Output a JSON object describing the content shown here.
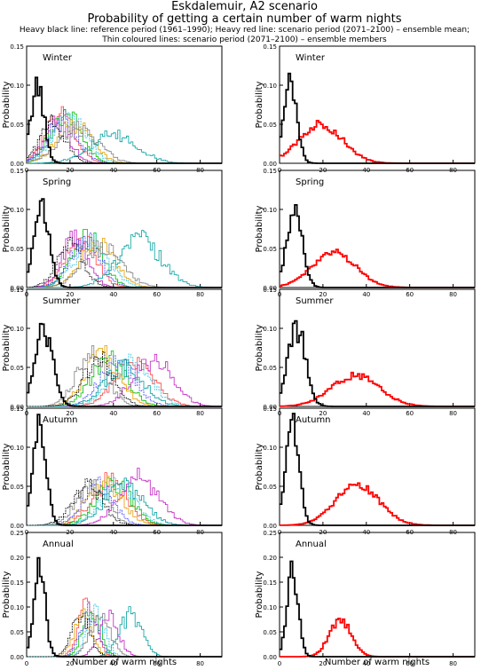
{
  "title": "Eskdalemuir, A2 scenario",
  "subtitle": "Probability of getting a certain number of warm nights",
  "legend_line1": "Heavy black line: reference period (1961–1990); Heavy red line: scenario period (2071–2100) – ensemble mean;",
  "legend_line2": "Thin coloured lines: scenario period (2071–2100) – ensemble members",
  "xlabel": "Number of warm nights",
  "ylabel": "Probability",
  "colors": {
    "reference": "#000000",
    "scenario_mean": "#ff0000",
    "members": [
      "#ff4040",
      "#00c000",
      "#20c0e0",
      "#c020c0",
      "#e0a000",
      "#4040ff",
      "#808080",
      "#00a0a0",
      "#000000"
    ]
  },
  "chart_data": [
    {
      "type": "histogram",
      "season": "Winter",
      "column": "ensemble members",
      "xlim": [
        0,
        90
      ],
      "ylim": [
        0,
        0.15
      ],
      "yticks": [
        0,
        0.05,
        0.1,
        0.15
      ],
      "xticks": [
        0,
        20,
        40,
        60,
        80
      ],
      "ref": {
        "mu": 5,
        "sd": 3,
        "peak": 0.1
      },
      "mean": null,
      "members": [
        {
          "mu": 15,
          "sd": 7,
          "peak": 0.06
        },
        {
          "mu": 18,
          "sd": 7,
          "peak": 0.065
        },
        {
          "mu": 20,
          "sd": 8,
          "peak": 0.055
        },
        {
          "mu": 14,
          "sd": 6,
          "peak": 0.05
        },
        {
          "mu": 22,
          "sd": 8,
          "peak": 0.05
        },
        {
          "mu": 17,
          "sd": 7,
          "peak": 0.055
        },
        {
          "mu": 24,
          "sd": 9,
          "peak": 0.045
        },
        {
          "mu": 40,
          "sd": 11,
          "peak": 0.035
        },
        {
          "mu": 12,
          "sd": 6,
          "peak": 0.05
        }
      ]
    },
    {
      "type": "histogram",
      "season": "Winter",
      "column": "ensemble mean",
      "xlim": [
        0,
        90
      ],
      "ylim": [
        0,
        0.15
      ],
      "yticks": [
        0,
        0.05,
        0.1,
        0.15
      ],
      "xticks": [
        0,
        20,
        40,
        60,
        80
      ],
      "ref": {
        "mu": 5,
        "sd": 3,
        "peak": 0.1
      },
      "mean": {
        "mu": 19,
        "sd": 10,
        "peak": 0.05
      },
      "members": []
    },
    {
      "type": "histogram",
      "season": "Spring",
      "column": "ensemble members",
      "xlim": [
        0,
        90
      ],
      "ylim": [
        0,
        0.15
      ],
      "yticks": [
        0,
        0.05,
        0.1,
        0.15
      ],
      "xticks": [
        0,
        20,
        40,
        60,
        80
      ],
      "ref": {
        "mu": 7,
        "sd": 3.5,
        "peak": 0.1
      },
      "mean": null,
      "members": [
        {
          "mu": 25,
          "sd": 7,
          "peak": 0.06
        },
        {
          "mu": 28,
          "sd": 7,
          "peak": 0.065
        },
        {
          "mu": 30,
          "sd": 8,
          "peak": 0.06
        },
        {
          "mu": 22,
          "sd": 6,
          "peak": 0.06
        },
        {
          "mu": 33,
          "sd": 8,
          "peak": 0.055
        },
        {
          "mu": 27,
          "sd": 7,
          "peak": 0.06
        },
        {
          "mu": 35,
          "sd": 9,
          "peak": 0.05
        },
        {
          "mu": 52,
          "sd": 10,
          "peak": 0.06
        },
        {
          "mu": 20,
          "sd": 6,
          "peak": 0.055
        }
      ]
    },
    {
      "type": "histogram",
      "season": "Spring",
      "column": "ensemble mean",
      "xlim": [
        0,
        90
      ],
      "ylim": [
        0,
        0.15
      ],
      "yticks": [
        0,
        0.05,
        0.1,
        0.15
      ],
      "xticks": [
        0,
        20,
        40,
        60,
        80
      ],
      "ref": {
        "mu": 7,
        "sd": 3.5,
        "peak": 0.1
      },
      "mean": {
        "mu": 25,
        "sd": 10,
        "peak": 0.045
      },
      "members": []
    },
    {
      "type": "histogram",
      "season": "Summer",
      "column": "ensemble members",
      "xlim": [
        0,
        90
      ],
      "ylim": [
        0,
        0.15
      ],
      "yticks": [
        0,
        0.05,
        0.1,
        0.15
      ],
      "xticks": [
        0,
        20,
        40,
        60,
        80
      ],
      "ref": {
        "mu": 8,
        "sd": 4,
        "peak": 0.1
      },
      "mean": null,
      "members": [
        {
          "mu": 50,
          "sd": 9,
          "peak": 0.055
        },
        {
          "mu": 38,
          "sd": 8,
          "peak": 0.06
        },
        {
          "mu": 48,
          "sd": 9,
          "peak": 0.055
        },
        {
          "mu": 58,
          "sd": 9,
          "peak": 0.06
        },
        {
          "mu": 35,
          "sd": 8,
          "peak": 0.065
        },
        {
          "mu": 42,
          "sd": 8,
          "peak": 0.06
        },
        {
          "mu": 30,
          "sd": 7,
          "peak": 0.065
        },
        {
          "mu": 45,
          "sd": 9,
          "peak": 0.05
        },
        {
          "mu": 33,
          "sd": 7,
          "peak": 0.06
        }
      ]
    },
    {
      "type": "histogram",
      "season": "Summer",
      "column": "ensemble mean",
      "xlim": [
        0,
        90
      ],
      "ylim": [
        0,
        0.15
      ],
      "yticks": [
        0,
        0.05,
        0.1,
        0.15
      ],
      "xticks": [
        0,
        20,
        40,
        60,
        80
      ],
      "ref": {
        "mu": 8,
        "sd": 4,
        "peak": 0.1
      },
      "mean": {
        "mu": 35,
        "sd": 11,
        "peak": 0.04
      },
      "members": []
    },
    {
      "type": "histogram",
      "season": "Autumn",
      "column": "ensemble members",
      "xlim": [
        0,
        90
      ],
      "ylim": [
        0,
        0.15
      ],
      "yticks": [
        0,
        0.05,
        0.1,
        0.15
      ],
      "xticks": [
        0,
        20,
        40,
        60,
        80
      ],
      "ref": {
        "mu": 6,
        "sd": 3,
        "peak": 0.125
      },
      "mean": null,
      "members": [
        {
          "mu": 38,
          "sd": 8,
          "peak": 0.055
        },
        {
          "mu": 40,
          "sd": 8,
          "peak": 0.055
        },
        {
          "mu": 42,
          "sd": 8,
          "peak": 0.05
        },
        {
          "mu": 52,
          "sd": 9,
          "peak": 0.06
        },
        {
          "mu": 36,
          "sd": 8,
          "peak": 0.055
        },
        {
          "mu": 33,
          "sd": 7,
          "peak": 0.05
        },
        {
          "mu": 30,
          "sd": 7,
          "peak": 0.05
        },
        {
          "mu": 45,
          "sd": 9,
          "peak": 0.05
        },
        {
          "mu": 28,
          "sd": 7,
          "peak": 0.05
        }
      ]
    },
    {
      "type": "histogram",
      "season": "Autumn",
      "column": "ensemble mean",
      "xlim": [
        0,
        90
      ],
      "ylim": [
        0,
        0.15
      ],
      "yticks": [
        0,
        0.05,
        0.1,
        0.15
      ],
      "xticks": [
        0,
        20,
        40,
        60,
        80
      ],
      "ref": {
        "mu": 6,
        "sd": 3,
        "peak": 0.125
      },
      "mean": {
        "mu": 36,
        "sd": 10,
        "peak": 0.052
      },
      "members": []
    },
    {
      "type": "histogram",
      "season": "Annual",
      "column": "ensemble members",
      "xlim": [
        0,
        90
      ],
      "ylim": [
        0,
        0.25
      ],
      "yticks": [
        0,
        0.05,
        0.1,
        0.15,
        0.2,
        0.25
      ],
      "xticks": [
        0,
        20,
        40,
        60,
        80
      ],
      "ref": {
        "mu": 6,
        "sd": 2.5,
        "peak": 0.18
      },
      "mean": null,
      "members": [
        {
          "mu": 28,
          "sd": 4,
          "peak": 0.1
        },
        {
          "mu": 30,
          "sd": 4,
          "peak": 0.095
        },
        {
          "mu": 32,
          "sd": 4,
          "peak": 0.09
        },
        {
          "mu": 38,
          "sd": 4.5,
          "peak": 0.08
        },
        {
          "mu": 26,
          "sd": 4,
          "peak": 0.09
        },
        {
          "mu": 29,
          "sd": 4,
          "peak": 0.09
        },
        {
          "mu": 34,
          "sd": 4.5,
          "peak": 0.085
        },
        {
          "mu": 48,
          "sd": 5,
          "peak": 0.085
        },
        {
          "mu": 25,
          "sd": 4,
          "peak": 0.09
        }
      ]
    },
    {
      "type": "histogram",
      "season": "Annual",
      "column": "ensemble mean",
      "xlim": [
        0,
        90
      ],
      "ylim": [
        0,
        0.25
      ],
      "yticks": [
        0,
        0.05,
        0.1,
        0.15,
        0.2,
        0.25
      ],
      "xticks": [
        0,
        20,
        40,
        60,
        80
      ],
      "ref": {
        "mu": 6,
        "sd": 2.5,
        "peak": 0.18
      },
      "mean": {
        "mu": 28,
        "sd": 5,
        "peak": 0.075
      },
      "members": []
    }
  ]
}
